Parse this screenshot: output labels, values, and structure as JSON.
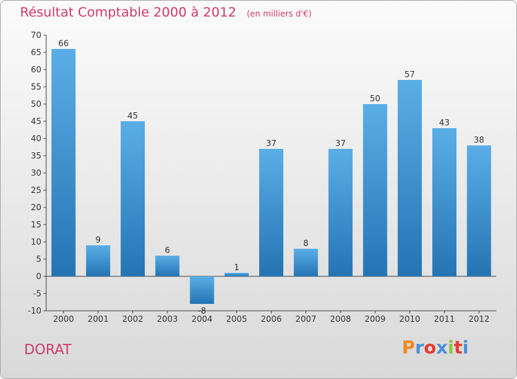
{
  "title": "Résultat Comptable 2000 à 2012",
  "subtitle": "(en milliers d'€)",
  "place_name": "DORAT",
  "brand": {
    "letters": [
      "P",
      "r",
      "o",
      "x",
      "i",
      "t",
      "i"
    ],
    "colors": [
      "#f08a1c",
      "#4a90d9",
      "#e73c2e",
      "#4a90d9",
      "#8cc43c",
      "#e73c2e",
      "#4a90d9"
    ]
  },
  "colors": {
    "bar_top": "#5aaee6",
    "bar_bottom": "#2474b4",
    "accent": "#d03a6c"
  },
  "chart_data": {
    "type": "bar",
    "title": "Résultat Comptable 2000 à 2012",
    "categories": [
      "2000",
      "2001",
      "2002",
      "2003",
      "2004",
      "2005",
      "2006",
      "2007",
      "2008",
      "2009",
      "2010",
      "2011",
      "2012"
    ],
    "values": [
      66,
      9,
      45,
      6,
      -8,
      1,
      37,
      8,
      37,
      50,
      57,
      43,
      38
    ],
    "value_labels": [
      "66",
      "9",
      "45",
      "6",
      "-8",
      "1",
      "37",
      "8",
      "37",
      "50",
      "57",
      "43",
      "38"
    ],
    "ylim": [
      -10,
      70
    ],
    "yticks": [
      -10,
      -5,
      0,
      5,
      10,
      15,
      20,
      25,
      30,
      35,
      40,
      45,
      50,
      55,
      60,
      65,
      70
    ],
    "ytick_labels": [
      "-10",
      "-5",
      "0",
      "5",
      "10",
      "15",
      "20",
      "25",
      "30",
      "35",
      "40",
      "45",
      "50",
      "55",
      "60",
      "65",
      "70"
    ],
    "grid": false,
    "xlabel": "",
    "ylabel": ""
  }
}
